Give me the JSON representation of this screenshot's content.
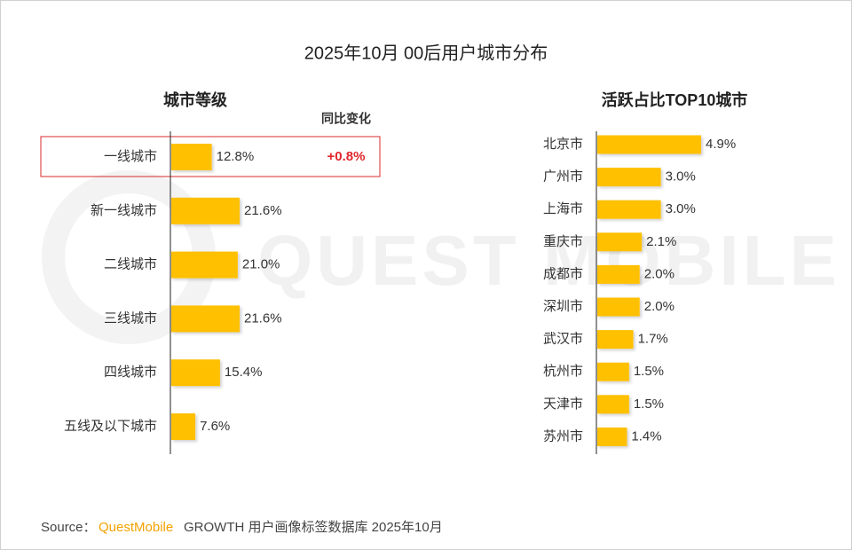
{
  "title": "2025年10月 00后用户城市分布",
  "watermark": "QUEST MOBILE",
  "chart_data": [
    {
      "type": "bar",
      "orientation": "horizontal",
      "title": "城市等级",
      "categories": [
        "一线城市",
        "新一线城市",
        "二线城市",
        "三线城市",
        "四线城市",
        "五线及以下城市"
      ],
      "values": [
        12.8,
        21.6,
        21.0,
        21.6,
        15.4,
        7.6
      ],
      "value_labels": [
        "12.8%",
        "21.6%",
        "21.0%",
        "21.6%",
        "15.4%",
        "7.6%"
      ],
      "change_header": "同比变化",
      "change_labels": [
        "+0.8%",
        null,
        null,
        null,
        null,
        null
      ],
      "color": "#ffc000"
    },
    {
      "type": "bar",
      "orientation": "horizontal",
      "title": "活跃占比TOP10城市",
      "categories": [
        "北京市",
        "广州市",
        "上海市",
        "重庆市",
        "成都市",
        "深圳市",
        "武汉市",
        "杭州市",
        "天津市",
        "苏州市"
      ],
      "values": [
        4.9,
        3.0,
        3.0,
        2.1,
        2.0,
        2.0,
        1.7,
        1.5,
        1.5,
        1.4
      ],
      "value_labels": [
        "4.9%",
        "3.0%",
        "3.0%",
        "2.1%",
        "2.0%",
        "2.0%",
        "1.7%",
        "1.5%",
        "1.5%",
        "1.4%"
      ],
      "color": "#ffc000"
    }
  ],
  "source": {
    "label": "Source：",
    "brand": "QuestMobile",
    "text": "GROWTH 用户画像标签数据库 2025年10月"
  }
}
